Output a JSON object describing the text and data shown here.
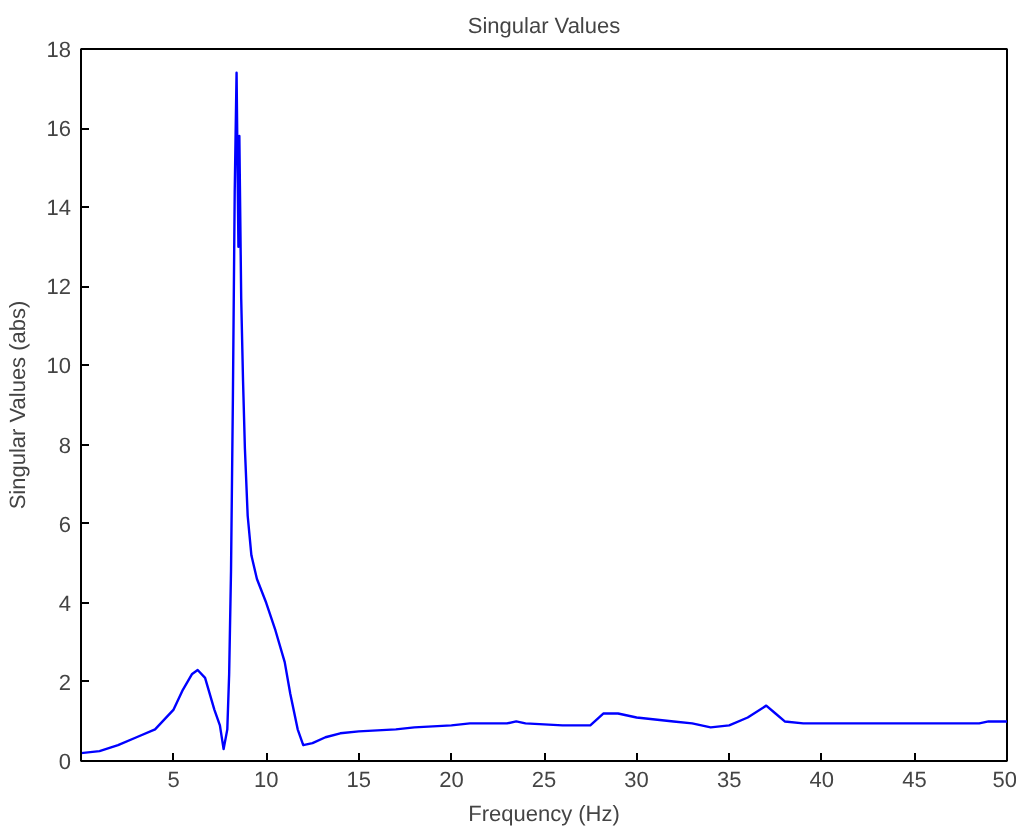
{
  "chart_data": {
    "type": "line",
    "title": "Singular Values",
    "xlabel": "Frequency (Hz)",
    "ylabel": "Singular Values (abs)",
    "xlim": [
      0,
      50
    ],
    "ylim": [
      0,
      18
    ],
    "xticks": [
      5,
      10,
      15,
      20,
      25,
      30,
      35,
      40,
      45,
      50
    ],
    "yticks": [
      0,
      2,
      4,
      6,
      8,
      10,
      12,
      14,
      16,
      18
    ],
    "grid": false,
    "series": [
      {
        "color": "#0000ff",
        "x": [
          0,
          1,
          2,
          3,
          4,
          5,
          5.5,
          6,
          6.3,
          6.7,
          7.2,
          7.5,
          7.7,
          7.9,
          8.0,
          8.1,
          8.2,
          8.3,
          8.4,
          8.5,
          8.55,
          8.65,
          8.75,
          8.85,
          9.0,
          9.2,
          9.5,
          10,
          10.5,
          11,
          11.3,
          11.7,
          12,
          12.5,
          13.2,
          14,
          15,
          17,
          18,
          20,
          21,
          23,
          23.5,
          24,
          26,
          27.5,
          28.2,
          29,
          30,
          31,
          32,
          33,
          34,
          35,
          36,
          37,
          37.5,
          38,
          39,
          45,
          48.5,
          49,
          50
        ],
        "values": [
          0.2,
          0.25,
          0.4,
          0.6,
          0.8,
          1.3,
          1.8,
          2.2,
          2.3,
          2.1,
          1.3,
          0.9,
          0.3,
          0.8,
          2.2,
          4.8,
          9.1,
          14.4,
          17.4,
          13.0,
          15.8,
          11.7,
          9.6,
          7.9,
          6.2,
          5.2,
          4.6,
          4.0,
          3.3,
          2.5,
          1.7,
          0.8,
          0.4,
          0.45,
          0.6,
          0.7,
          0.75,
          0.8,
          0.85,
          0.9,
          0.95,
          0.95,
          1.0,
          0.95,
          0.9,
          0.9,
          1.2,
          1.2,
          1.1,
          1.05,
          1.0,
          0.95,
          0.85,
          0.9,
          1.1,
          1.4,
          1.2,
          1.0,
          0.95,
          0.95,
          0.95,
          1.0,
          1.0
        ]
      }
    ]
  }
}
